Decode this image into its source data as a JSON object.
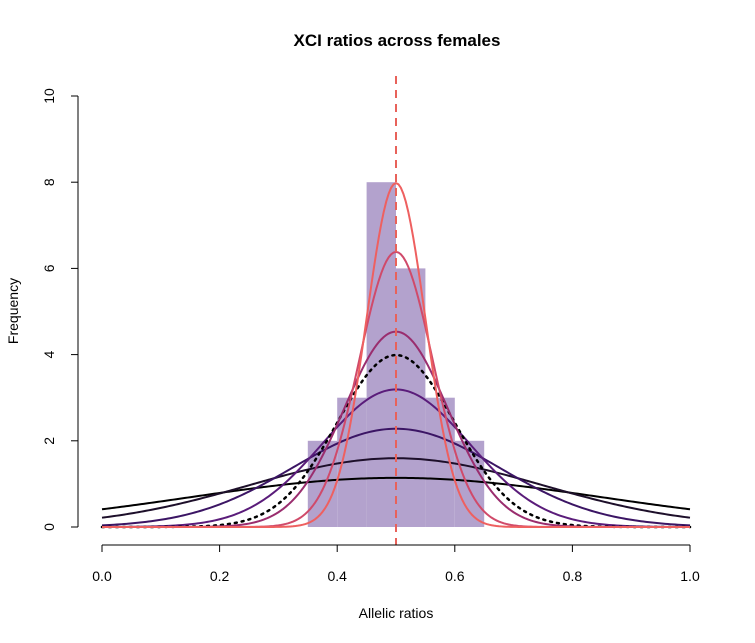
{
  "chart_data": {
    "type": "bar",
    "title": "XCI ratios across females",
    "xlabel": "Allelic ratios",
    "ylabel": "Frequency",
    "xlim": [
      0,
      1
    ],
    "ylim": [
      0,
      10
    ],
    "x_ticks": [
      "0.0",
      "0.2",
      "0.4",
      "0.6",
      "0.8",
      "1.0"
    ],
    "y_ticks": [
      "0",
      "2",
      "4",
      "6",
      "8",
      "10"
    ],
    "grid": false,
    "histogram": {
      "bin_edges": [
        0.35,
        0.4,
        0.45,
        0.5,
        0.55,
        0.6,
        0.65
      ],
      "counts": [
        2,
        3,
        8,
        6,
        3,
        2
      ],
      "color": "#b3a2cd"
    },
    "reference_line": {
      "x": 0.5,
      "style": "dashed",
      "color": "#e8625a"
    },
    "density_curves": {
      "mean": 0.5,
      "scale": 1,
      "series": [
        {
          "sd": 0.35,
          "color": "#000000",
          "style": "solid"
        },
        {
          "sd": 0.25,
          "color": "#1d0f2a",
          "style": "solid"
        },
        {
          "sd": 0.175,
          "color": "#3b1564",
          "style": "solid"
        },
        {
          "sd": 0.125,
          "color": "#5a1c7a",
          "style": "solid"
        },
        {
          "sd": 0.1,
          "color": "#000000",
          "style": "dotted"
        },
        {
          "sd": 0.088,
          "color": "#9a2d6e",
          "style": "solid"
        },
        {
          "sd": 0.0625,
          "color": "#d04a6a",
          "style": "solid"
        },
        {
          "sd": 0.05,
          "color": "#ee6060",
          "style": "solid"
        }
      ]
    }
  }
}
